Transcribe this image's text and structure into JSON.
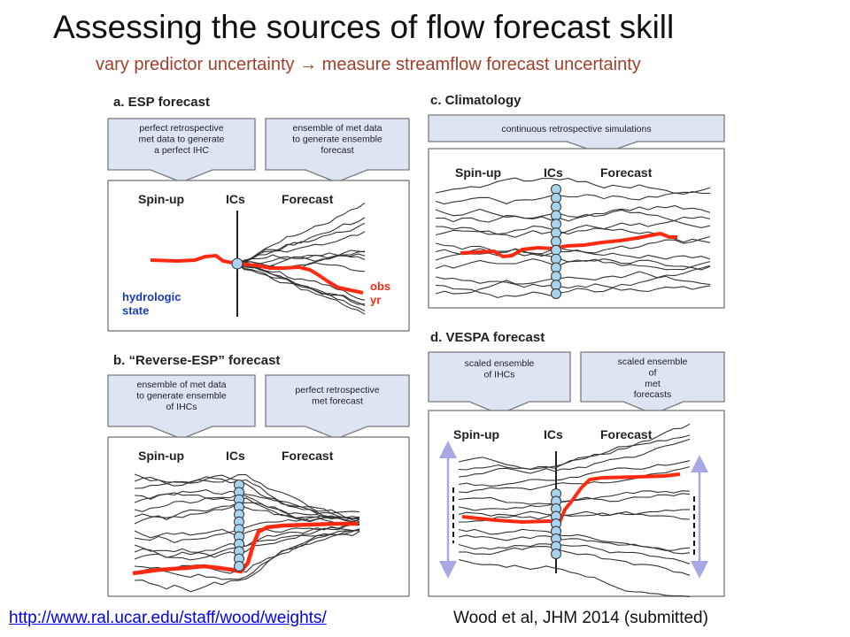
{
  "title": "Assessing the sources of flow forecast skill",
  "subtitle": "vary predictor uncertainty → measure streamflow forecast uncertainty",
  "colors": {
    "title": "#111111",
    "subtitle": "#a0402c",
    "callout_fill": "#dde4f4",
    "callout_stroke": "#7a7a7a",
    "obs_line": "#ff2a12",
    "ic_node": "#a9d4ef",
    "annotation": "#1f3bb3",
    "spread_arrow": "#a8a8e6",
    "link": "#0000ee"
  },
  "panels": {
    "a": {
      "heading": "a.  ESP forecast",
      "callouts": [
        "perfect retrospective\nmet data to generate\na perfect IHC",
        "ensemble of met data\nto generate ensemble\nforecast"
      ],
      "labels": {
        "spinup": "Spin-up",
        "ics": "ICs",
        "forecast": "Forecast"
      },
      "annotations": {
        "state": "hydrologic\nstate",
        "obs": "obs\nyr"
      }
    },
    "b": {
      "heading": "b.  “Reverse-ESP” forecast",
      "callouts": [
        "ensemble of met data\nto generate ensemble\nof IHCs",
        "perfect retrospective\nmet forecast"
      ],
      "labels": {
        "spinup": "Spin-up",
        "ics": "ICs",
        "forecast": "Forecast"
      }
    },
    "c": {
      "heading": "c.  Climatology",
      "callouts": [
        "continuous retrospective simulations"
      ],
      "labels": {
        "spinup": "Spin-up",
        "ics": "ICs",
        "forecast": "Forecast"
      }
    },
    "d": {
      "heading": "d.  VESPA forecast",
      "callouts": [
        "scaled ensemble\nof IHCs",
        "scaled ensemble\nof\nmet\nforecasts"
      ],
      "labels": {
        "spinup": "Spin-up",
        "ics": "ICs",
        "forecast": "Forecast"
      }
    }
  },
  "footer": {
    "link": "http://www.ral.ucar.edu/staff/wood/weights/",
    "citation": "Wood et al, JHM 2014 (submitted)"
  }
}
